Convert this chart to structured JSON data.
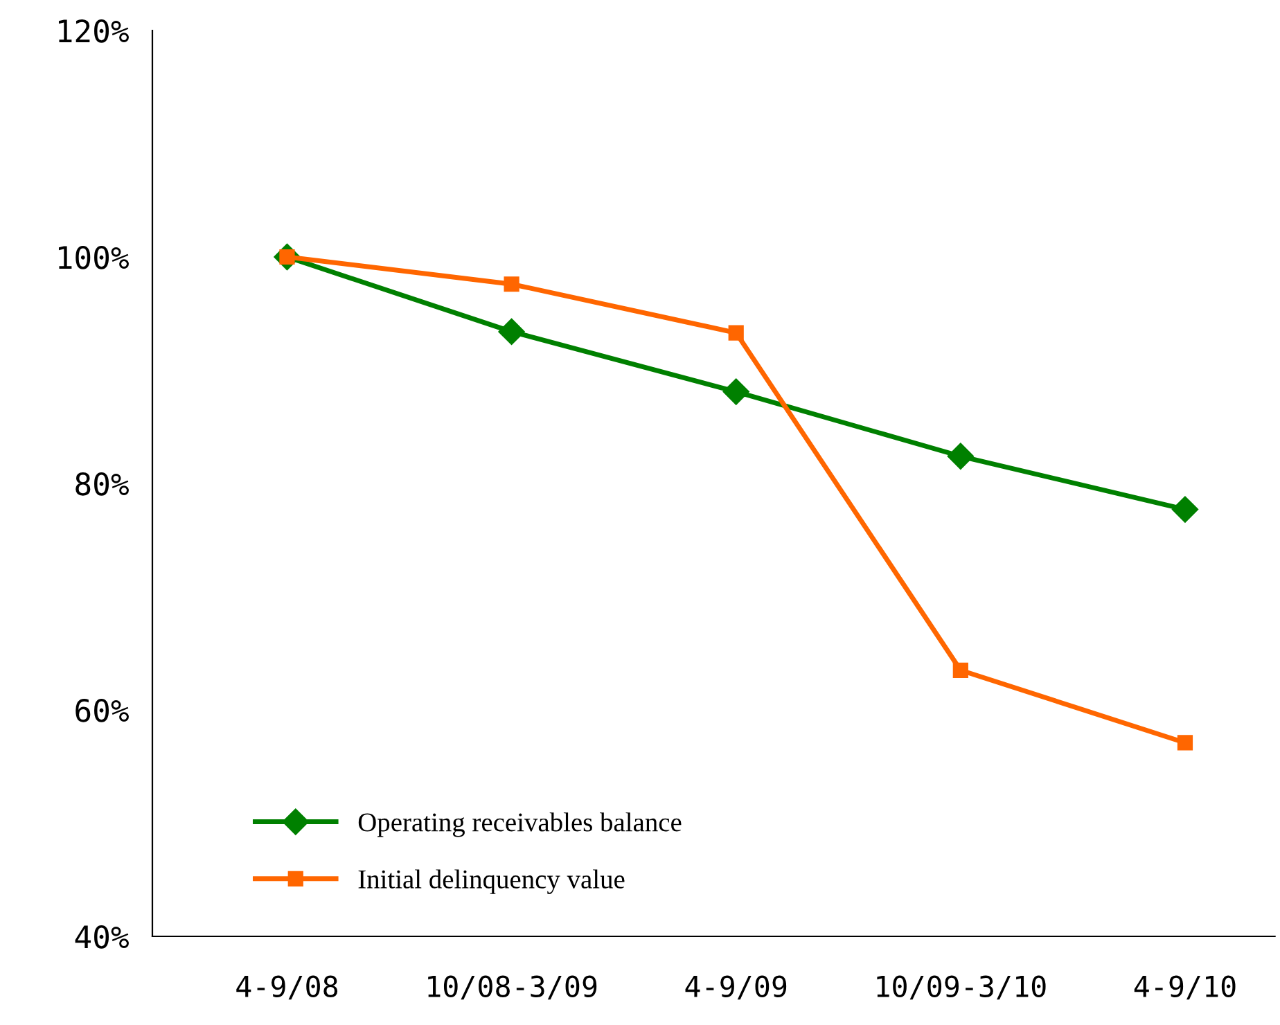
{
  "chart_data": {
    "type": "line",
    "categories": [
      "4-9/08",
      "10/08-3/09",
      "4-9/09",
      "10/09-3/10",
      "4-9/10"
    ],
    "series": [
      {
        "name": "Operating receivables balance",
        "color": "#008000",
        "marker": "diamond",
        "values": [
          100,
          93.4,
          88.1,
          82.4,
          77.7
        ]
      },
      {
        "name": "Initial delinquency value",
        "color": "#ff6600",
        "marker": "square",
        "values": [
          100,
          97.6,
          93.3,
          63.5,
          57.1
        ]
      }
    ],
    "ylim": [
      40,
      120
    ],
    "yticks": [
      {
        "value": 40,
        "label": "40%"
      },
      {
        "value": 60,
        "label": "60%"
      },
      {
        "value": 80,
        "label": "80%"
      },
      {
        "value": 100,
        "label": "100%"
      },
      {
        "value": 120,
        "label": "120%"
      }
    ],
    "grid": false,
    "legend": "bottom left",
    "line_style": "solid"
  }
}
